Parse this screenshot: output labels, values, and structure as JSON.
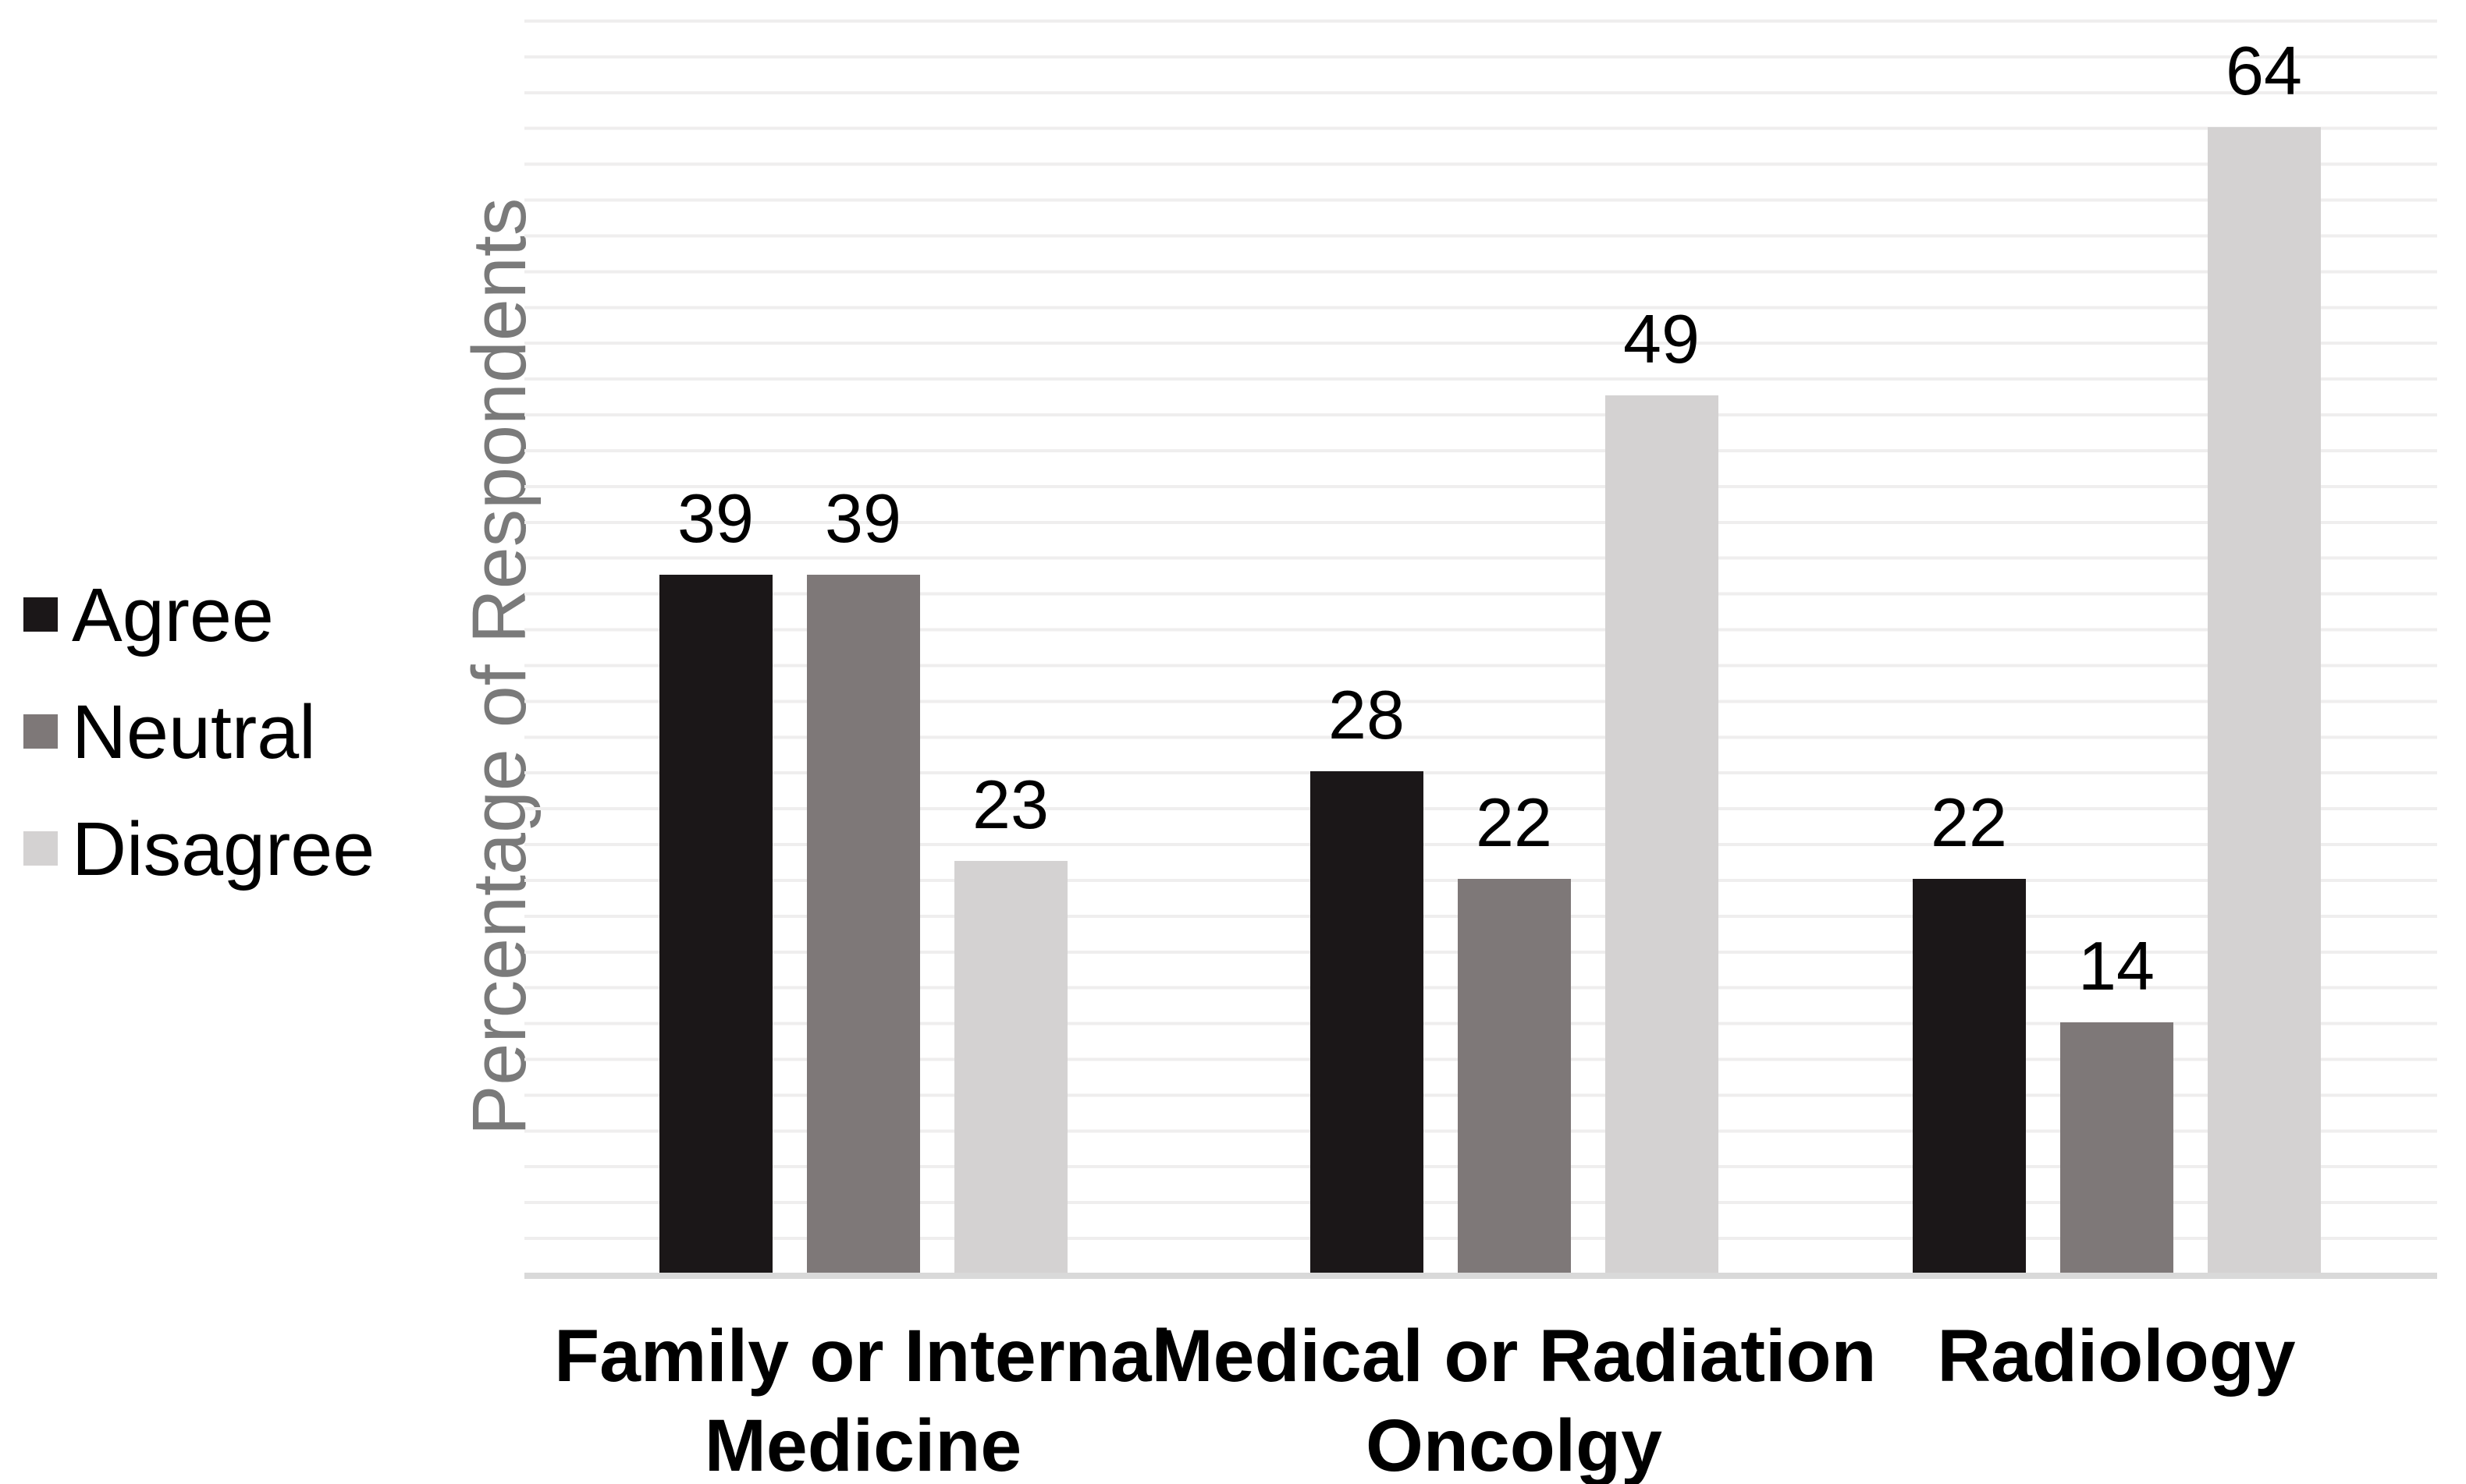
{
  "chart_data": {
    "type": "bar",
    "title": "",
    "ylabel": "Percentage of Respondents",
    "xlabel": "",
    "ylim": [
      0,
      70
    ],
    "gridline_step": 2,
    "grid": true,
    "legend_position": "left",
    "data_labels": true,
    "categories": [
      "Family or Internal\nMedicine",
      "Medical or Radiation\nOncolgy",
      "Radiology"
    ],
    "series": [
      {
        "name": "Agree",
        "color": "#1b1718",
        "values": [
          39,
          28,
          22
        ]
      },
      {
        "name": "Neutral",
        "color": "#7e7878",
        "values": [
          39,
          22,
          14
        ]
      },
      {
        "name": "Disagree",
        "color": "#d4d2d2",
        "values": [
          23,
          49,
          64
        ]
      }
    ],
    "colors": {
      "gridline": "#efeeee",
      "axis_line": "#d9d9d9",
      "ylabel_text": "#7a7a7a",
      "label_text": "#000000",
      "background": "#ffffff"
    }
  }
}
